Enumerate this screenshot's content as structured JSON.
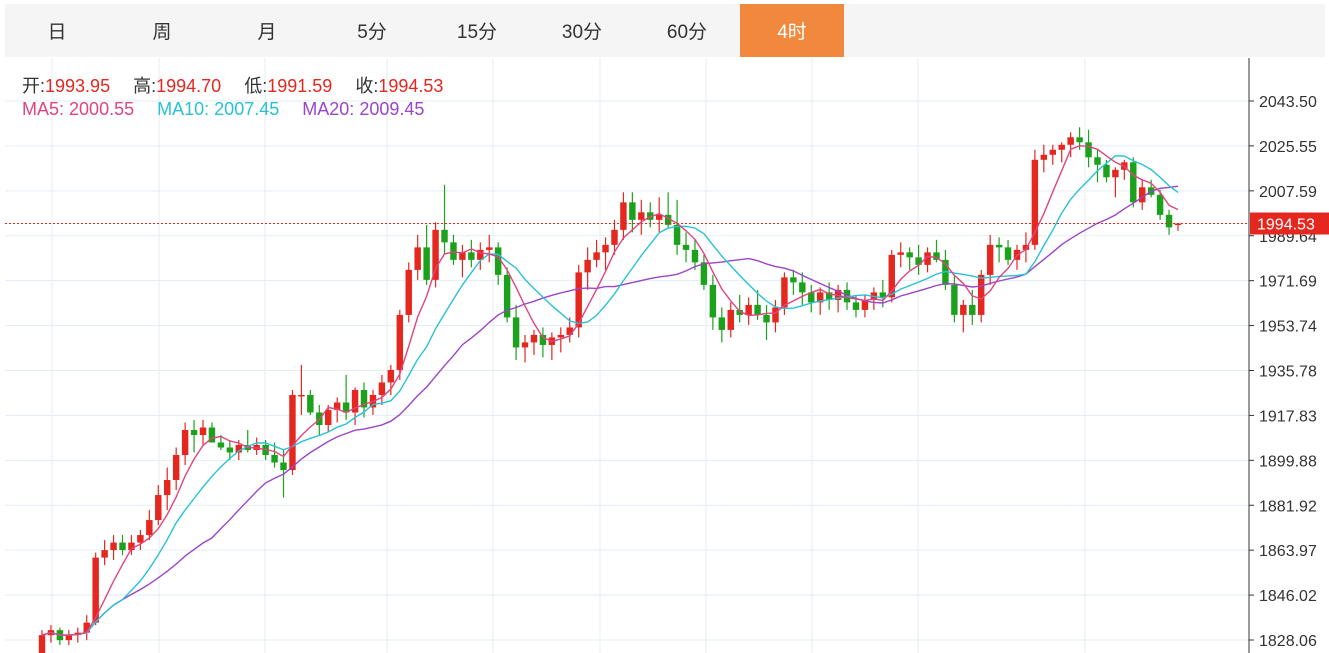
{
  "tabs": [
    {
      "label": "日",
      "active": false
    },
    {
      "label": "周",
      "active": false
    },
    {
      "label": "月",
      "active": false
    },
    {
      "label": "5分",
      "active": false
    },
    {
      "label": "15分",
      "active": false
    },
    {
      "label": "30分",
      "active": false
    },
    {
      "label": "60分",
      "active": false
    },
    {
      "label": "4时",
      "active": true
    }
  ],
  "ohlc_info": {
    "open_label": "开:",
    "open": "1993.95",
    "high_label": "高:",
    "high": "1994.70",
    "low_label": "低:",
    "low": "1991.59",
    "close_label": "收:",
    "close": "1994.53"
  },
  "ma_info": {
    "ma5_label": "MA5:",
    "ma5": "2000.55",
    "ma10_label": "MA10:",
    "ma10": "2007.45",
    "ma20_label": "MA20:",
    "ma20": "2009.45"
  },
  "colors": {
    "up": "#e4271f",
    "down": "#1ca11c",
    "ma5": "#e14480",
    "ma10": "#28c2d6",
    "ma20": "#9b45c9",
    "grid": "#e3edf3",
    "active_tab": "#f0883e"
  },
  "chart_data": {
    "type": "candlestick",
    "interval": "4时",
    "y_ticks": [
      "2043.50",
      "2025.55",
      "2007.59",
      "1989.64",
      "1971.69",
      "1953.74",
      "1935.78",
      "1917.83",
      "1899.88",
      "1881.92",
      "1863.97",
      "1846.02",
      "1828.06"
    ],
    "ylim": [
      1826,
      2060
    ],
    "last_price": "1994.53",
    "grid": true,
    "candles": [
      [
        1822,
        1832,
        1818,
        1830
      ],
      [
        1830,
        1834,
        1827,
        1832
      ],
      [
        1832,
        1833,
        1826,
        1828
      ],
      [
        1828,
        1832,
        1826,
        1830
      ],
      [
        1830,
        1833,
        1827,
        1831
      ],
      [
        1831,
        1838,
        1828,
        1835
      ],
      [
        1835,
        1863,
        1834,
        1861
      ],
      [
        1861,
        1868,
        1858,
        1864
      ],
      [
        1864,
        1870,
        1860,
        1867
      ],
      [
        1867,
        1870,
        1862,
        1864
      ],
      [
        1864,
        1870,
        1862,
        1867
      ],
      [
        1867,
        1872,
        1864,
        1870
      ],
      [
        1870,
        1880,
        1868,
        1876
      ],
      [
        1876,
        1890,
        1874,
        1886
      ],
      [
        1886,
        1897,
        1880,
        1892
      ],
      [
        1892,
        1905,
        1888,
        1902
      ],
      [
        1902,
        1915,
        1898,
        1912
      ],
      [
        1912,
        1916,
        1903,
        1910
      ],
      [
        1910,
        1916,
        1906,
        1913
      ],
      [
        1913,
        1915,
        1907,
        1907
      ],
      [
        1907,
        1910,
        1904,
        1905
      ],
      [
        1905,
        1908,
        1900,
        1903
      ],
      [
        1903,
        1908,
        1900,
        1906
      ],
      [
        1906,
        1912,
        1903,
        1904
      ],
      [
        1904,
        1909,
        1902,
        1906
      ],
      [
        1906,
        1908,
        1900,
        1902
      ],
      [
        1902,
        1907,
        1897,
        1899
      ],
      [
        1899,
        1904,
        1885,
        1896
      ],
      [
        1896,
        1928,
        1894,
        1926
      ],
      [
        1926,
        1938,
        1918,
        1926
      ],
      [
        1926,
        1928,
        1918,
        1919
      ],
      [
        1919,
        1922,
        1910,
        1914
      ],
      [
        1914,
        1922,
        1911,
        1920
      ],
      [
        1920,
        1925,
        1915,
        1923
      ],
      [
        1923,
        1934,
        1916,
        1919
      ],
      [
        1919,
        1929,
        1914,
        1928
      ],
      [
        1928,
        1931,
        1917,
        1921
      ],
      [
        1921,
        1928,
        1918,
        1926
      ],
      [
        1926,
        1934,
        1922,
        1931
      ],
      [
        1931,
        1938,
        1926,
        1936
      ],
      [
        1936,
        1960,
        1932,
        1958
      ],
      [
        1958,
        1979,
        1955,
        1976
      ],
      [
        1976,
        1990,
        1972,
        1985
      ],
      [
        1985,
        1994,
        1970,
        1972
      ],
      [
        1972,
        1995,
        1969,
        1992
      ],
      [
        1992,
        2010,
        1982,
        1987
      ],
      [
        1987,
        1990,
        1978,
        1980
      ],
      [
        1980,
        1986,
        1973,
        1983
      ],
      [
        1983,
        1988,
        1977,
        1980
      ],
      [
        1980,
        1987,
        1976,
        1984
      ],
      [
        1984,
        1990,
        1979,
        1985
      ],
      [
        1985,
        1987,
        1970,
        1974
      ],
      [
        1974,
        1977,
        1955,
        1957
      ],
      [
        1957,
        1962,
        1940,
        1945
      ],
      [
        1945,
        1950,
        1939,
        1947
      ],
      [
        1947,
        1952,
        1942,
        1950
      ],
      [
        1950,
        1953,
        1941,
        1946
      ],
      [
        1946,
        1951,
        1940,
        1949
      ],
      [
        1949,
        1953,
        1943,
        1950
      ],
      [
        1950,
        1957,
        1947,
        1953
      ],
      [
        1953,
        1978,
        1949,
        1975
      ],
      [
        1975,
        1985,
        1968,
        1980
      ],
      [
        1980,
        1988,
        1977,
        1983
      ],
      [
        1983,
        1989,
        1976,
        1986
      ],
      [
        1986,
        1996,
        1982,
        1992
      ],
      [
        1992,
        2007,
        1988,
        2003
      ],
      [
        2003,
        2007,
        1991,
        1996
      ],
      [
        1996,
        2004,
        1990,
        1999
      ],
      [
        1999,
        2003,
        1993,
        1996
      ],
      [
        1996,
        2005,
        1991,
        1998
      ],
      [
        1998,
        2007,
        1993,
        1994
      ],
      [
        1994,
        2004,
        1982,
        1986
      ],
      [
        1986,
        1991,
        1979,
        1984
      ],
      [
        1984,
        1988,
        1976,
        1979
      ],
      [
        1979,
        1982,
        1968,
        1970
      ],
      [
        1970,
        1974,
        1952,
        1957
      ],
      [
        1957,
        1961,
        1947,
        1952
      ],
      [
        1952,
        1963,
        1949,
        1960
      ],
      [
        1960,
        1966,
        1955,
        1958
      ],
      [
        1958,
        1965,
        1954,
        1962
      ],
      [
        1962,
        1968,
        1956,
        1958
      ],
      [
        1958,
        1962,
        1948,
        1955
      ],
      [
        1955,
        1964,
        1951,
        1961
      ],
      [
        1961,
        1975,
        1958,
        1973
      ],
      [
        1973,
        1976,
        1966,
        1971
      ],
      [
        1971,
        1975,
        1962,
        1967
      ],
      [
        1967,
        1970,
        1959,
        1963
      ],
      [
        1963,
        1969,
        1958,
        1967
      ],
      [
        1967,
        1971,
        1960,
        1964
      ],
      [
        1964,
        1970,
        1959,
        1968
      ],
      [
        1968,
        1971,
        1960,
        1963
      ],
      [
        1963,
        1966,
        1957,
        1960
      ],
      [
        1960,
        1966,
        1957,
        1964
      ],
      [
        1964,
        1969,
        1960,
        1967
      ],
      [
        1967,
        1972,
        1961,
        1965
      ],
      [
        1965,
        1984,
        1963,
        1982
      ],
      [
        1982,
        1987,
        1977,
        1983
      ],
      [
        1983,
        1985,
        1976,
        1981
      ],
      [
        1981,
        1986,
        1974,
        1978
      ],
      [
        1978,
        1985,
        1975,
        1983
      ],
      [
        1983,
        1988,
        1979,
        1980
      ],
      [
        1980,
        1984,
        1968,
        1970
      ],
      [
        1970,
        1974,
        1955,
        1958
      ],
      [
        1958,
        1964,
        1951,
        1962
      ],
      [
        1962,
        1968,
        1954,
        1958
      ],
      [
        1958,
        1976,
        1955,
        1974
      ],
      [
        1974,
        1990,
        1970,
        1986
      ],
      [
        1986,
        1989,
        1979,
        1985
      ],
      [
        1985,
        1988,
        1978,
        1980
      ],
      [
        1980,
        1986,
        1976,
        1984
      ],
      [
        1984,
        1991,
        1979,
        1986
      ],
      [
        1986,
        2024,
        1984,
        2020
      ],
      [
        2020,
        2026,
        2015,
        2022
      ],
      [
        2022,
        2026,
        2018,
        2024
      ],
      [
        2024,
        2027,
        2019,
        2026
      ],
      [
        2026,
        2031,
        2021,
        2029
      ],
      [
        2029,
        2033,
        2024,
        2027
      ],
      [
        2027,
        2032,
        2017,
        2021
      ],
      [
        2021,
        2024,
        2011,
        2018
      ],
      [
        2018,
        2020,
        2011,
        2013
      ],
      [
        2013,
        2017,
        2005,
        2016
      ],
      [
        2016,
        2020,
        2012,
        2019
      ],
      [
        2019,
        2021,
        2001,
        2003
      ],
      [
        2003,
        2012,
        2000,
        2009
      ],
      [
        2009,
        2012,
        2005,
        2006
      ],
      [
        2006,
        2008,
        1996,
        1998
      ],
      [
        1998,
        2000,
        1990,
        1993
      ],
      [
        1993.95,
        1994.7,
        1991.59,
        1994.53
      ]
    ]
  }
}
